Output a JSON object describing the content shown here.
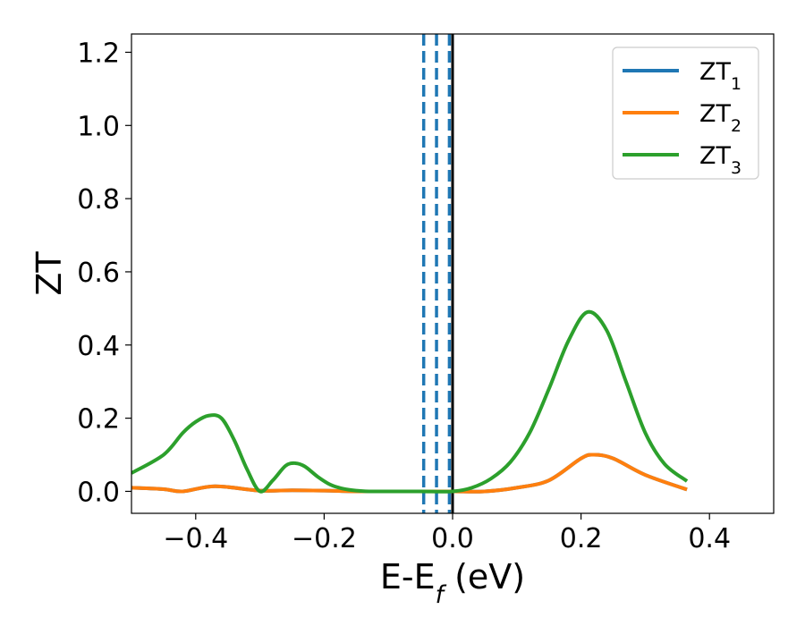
{
  "chart_data": {
    "type": "line",
    "xlabel": "E-E_f (eV)",
    "ylabel": "ZT",
    "xlim": [
      -0.5,
      0.5
    ],
    "ylim": [
      -0.06,
      1.25
    ],
    "xticks": [
      -0.4,
      -0.2,
      0.0,
      0.2,
      0.4
    ],
    "xtick_labels": [
      "−0.4",
      "−0.2",
      "0.0",
      "0.2",
      "0.4"
    ],
    "yticks": [
      0.0,
      0.2,
      0.4,
      0.6,
      0.8,
      1.0,
      1.2
    ],
    "ytick_labels": [
      "0.0",
      "0.2",
      "0.4",
      "0.6",
      "0.8",
      "1.0",
      "1.2"
    ],
    "grid": false,
    "legend_position": "top-right",
    "series": [
      {
        "name": "ZT_1",
        "color": "#1f77b4",
        "x": [
          -0.5,
          -0.45,
          -0.42,
          -0.37,
          -0.3,
          -0.25,
          -0.2,
          -0.15,
          -0.1,
          -0.05,
          0.0,
          0.05,
          0.1,
          0.15,
          0.2,
          0.22,
          0.25,
          0.3,
          0.365
        ],
        "y": [
          0.01,
          0.006,
          0.0,
          0.014,
          0.002,
          0.003,
          0.002,
          0.0,
          0.0,
          0.0,
          0.0,
          0.0,
          0.01,
          0.03,
          0.09,
          0.1,
          0.09,
          0.045,
          0.005
        ]
      },
      {
        "name": "ZT_2",
        "color": "#ff7f0e",
        "x": [
          -0.5,
          -0.45,
          -0.42,
          -0.37,
          -0.3,
          -0.25,
          -0.2,
          -0.15,
          -0.1,
          -0.05,
          0.0,
          0.05,
          0.1,
          0.15,
          0.2,
          0.22,
          0.25,
          0.3,
          0.365
        ],
        "y": [
          0.01,
          0.006,
          0.0,
          0.014,
          0.002,
          0.003,
          0.002,
          0.0,
          0.0,
          0.0,
          0.0,
          0.0,
          0.01,
          0.03,
          0.09,
          0.1,
          0.09,
          0.045,
          0.005
        ]
      },
      {
        "name": "ZT_3",
        "color": "#2ca02c",
        "x": [
          -0.5,
          -0.45,
          -0.42,
          -0.4,
          -0.38,
          -0.36,
          -0.34,
          -0.32,
          -0.3,
          -0.28,
          -0.26,
          -0.245,
          -0.23,
          -0.21,
          -0.19,
          -0.17,
          -0.15,
          -0.13,
          -0.1,
          -0.05,
          0.0,
          0.03,
          0.06,
          0.09,
          0.12,
          0.15,
          0.18,
          0.21,
          0.24,
          0.27,
          0.3,
          0.33,
          0.365
        ],
        "y": [
          0.05,
          0.1,
          0.16,
          0.19,
          0.207,
          0.2,
          0.14,
          0.06,
          0.0,
          0.03,
          0.07,
          0.077,
          0.068,
          0.04,
          0.018,
          0.007,
          0.002,
          0.0,
          0.0,
          0.0,
          0.0,
          0.01,
          0.035,
          0.08,
          0.16,
          0.28,
          0.41,
          0.49,
          0.44,
          0.3,
          0.16,
          0.075,
          0.028
        ]
      }
    ],
    "vertical_lines": [
      {
        "x": -0.045,
        "style": "dashed",
        "color": "#1f77b4"
      },
      {
        "x": -0.025,
        "style": "dashed",
        "color": "#1f77b4"
      },
      {
        "x": -0.005,
        "style": "dashed",
        "color": "#1f77b4"
      },
      {
        "x": 0.0,
        "style": "solid",
        "color": "#000000"
      }
    ]
  }
}
